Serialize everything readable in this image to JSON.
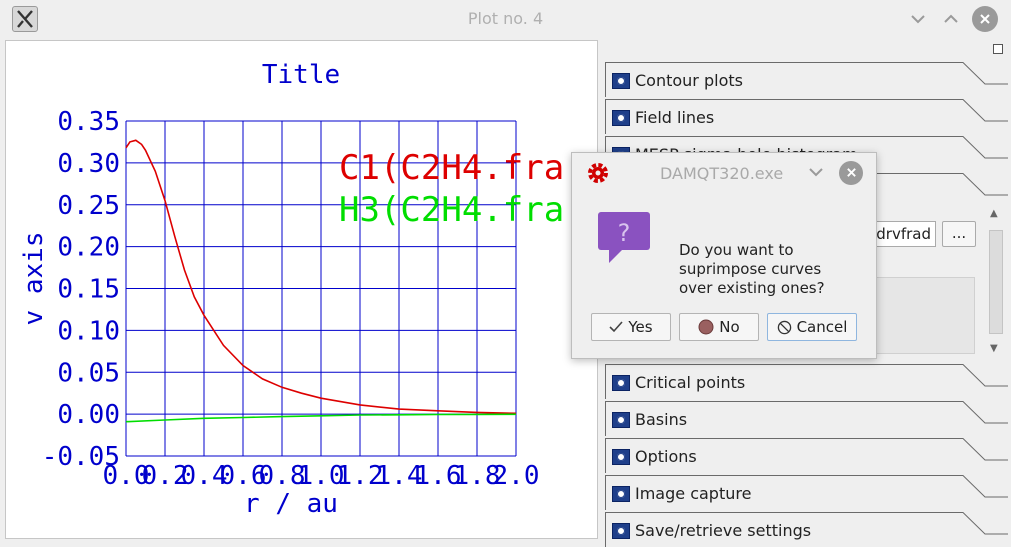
{
  "window": {
    "title": "Plot no. 4",
    "icons": {
      "app": "x-logo-icon",
      "minimize": "chevron-down-icon",
      "maximize": "chevron-up-icon",
      "close": "close-icon"
    }
  },
  "plot": {
    "title": "Title",
    "series_labels": [
      "C1(C2H4.fra",
      "H3(C2H4.fra"
    ],
    "colors": {
      "axis": "#0000cc",
      "series1": "#dd0000",
      "series2": "#00dd00"
    }
  },
  "chart_data": {
    "type": "line",
    "title": "Title",
    "xlabel": "r / au",
    "ylabel": "v axis",
    "xlim": [
      0.0,
      2.0
    ],
    "ylim": [
      -0.05,
      0.35
    ],
    "grid": true,
    "legend_position": "top-right",
    "x_ticks": [
      "0.0",
      "0.2",
      "0.4",
      "0.6",
      "0.8",
      "1.0",
      "1.2",
      "1.4",
      "1.6",
      "1.8",
      "2.0"
    ],
    "y_ticks": [
      "0.35",
      "0.30",
      "0.25",
      "0.20",
      "0.15",
      "0.10",
      "0.05",
      "0.00",
      "-0.05"
    ],
    "series": [
      {
        "name": "C1(C2H4.fra",
        "color": "#dd0000",
        "x": [
          0.0,
          0.02,
          0.05,
          0.08,
          0.1,
          0.15,
          0.2,
          0.25,
          0.3,
          0.35,
          0.4,
          0.5,
          0.6,
          0.7,
          0.8,
          0.9,
          1.0,
          1.2,
          1.4,
          1.6,
          1.8,
          2.0
        ],
        "y": [
          0.318,
          0.325,
          0.327,
          0.322,
          0.315,
          0.29,
          0.255,
          0.212,
          0.172,
          0.14,
          0.118,
          0.082,
          0.058,
          0.042,
          0.032,
          0.025,
          0.019,
          0.011,
          0.006,
          0.004,
          0.002,
          0.001
        ]
      },
      {
        "name": "H3(C2H4.fra",
        "color": "#00dd00",
        "x": [
          0.0,
          0.2,
          0.4,
          0.6,
          0.8,
          1.0,
          1.2,
          1.4,
          1.6,
          1.8,
          2.0
        ],
        "y": [
          -0.009,
          -0.007,
          -0.005,
          -0.004,
          -0.003,
          -0.002,
          -0.001,
          -0.0008,
          -0.0005,
          -0.0003,
          -0.0002
        ]
      }
    ]
  },
  "side_panel": {
    "tabs": [
      {
        "label": "Contour plots",
        "icon": "gear-icon"
      },
      {
        "label": "Field lines",
        "icon": "gear-icon"
      },
      {
        "label": "MESP sigma hole histogram",
        "icon": "gear-icon"
      },
      {
        "label": "Critical points",
        "icon": "gear-icon"
      },
      {
        "label": "Basins",
        "icon": "gear-icon"
      },
      {
        "label": "Options",
        "icon": "gear-icon"
      },
      {
        "label": "Image capture",
        "icon": "gear-icon"
      },
      {
        "label": "Save/retrieve settings",
        "icon": "gear-icon"
      }
    ],
    "file_field": "drvfrad",
    "browse_label": "..."
  },
  "dialog": {
    "title": "DAMQT320.exe",
    "message_lines": [
      "Do you want to",
      "suprimpose curves",
      "over existing ones?"
    ],
    "buttons": {
      "yes": "Yes",
      "no": "No",
      "cancel": "Cancel"
    },
    "icons": {
      "app": "gear-app-icon",
      "question": "question-icon"
    }
  }
}
